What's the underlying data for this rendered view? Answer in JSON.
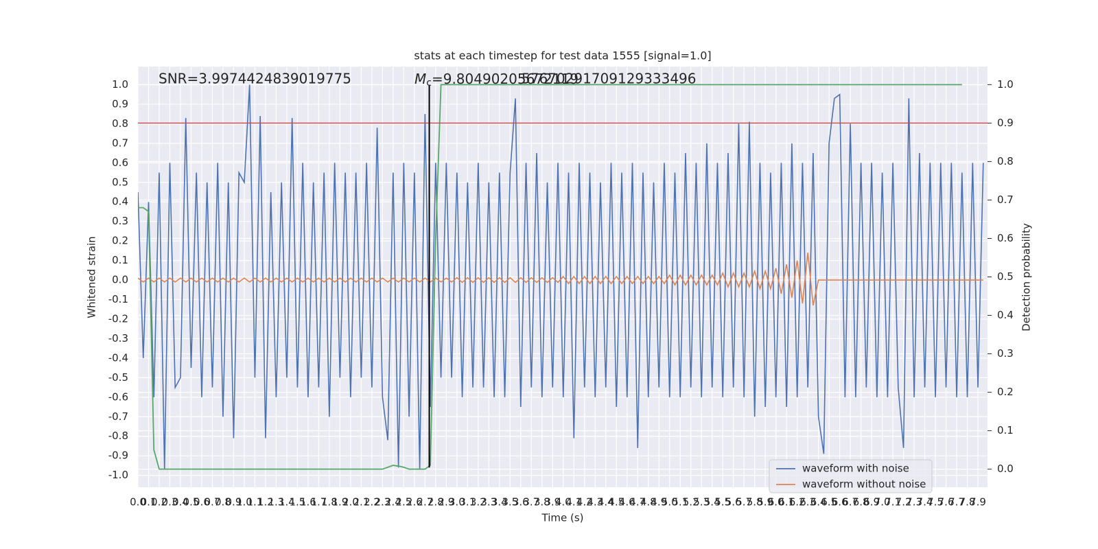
{
  "chart_data": {
    "type": "line",
    "title": "stats at each timestep for test data 1555 [signal=1.0]",
    "xlabel": "Time (s)",
    "ylabel": "Whitened strain",
    "y2label": "Detection probability",
    "annotations": {
      "snr": "SNR=3.9974424839019775",
      "mc_symbol": "M",
      "mc_subscript": "c",
      "mc_text": "=9.80490205672119",
      "mc_overlap": "57670291709129333496"
    },
    "grid": true,
    "legend_loc": "lower right",
    "xlim": [
      0,
      7.99
    ],
    "ylim": [
      -1.061,
      1.093
    ],
    "y2lim": [
      -0.047,
      1.047
    ],
    "xticks": [
      {
        "value": 0,
        "label": "0.0"
      },
      0.1,
      0.2,
      0.3,
      0.4,
      0.5,
      0.6,
      0.7,
      0.8,
      0.9,
      {
        "value": 1,
        "label": "1.0"
      },
      1.1,
      1.2,
      1.3,
      1.4,
      1.5,
      1.6,
      1.7,
      1.8,
      1.9,
      {
        "value": 2,
        "label": "2.0"
      },
      2.1,
      2.2,
      2.3,
      2.4,
      2.5,
      2.6,
      2.7,
      2.8,
      2.9,
      {
        "value": 3,
        "label": "3.0"
      },
      3.1,
      3.2,
      3.3,
      3.4,
      3.5,
      3.6,
      3.7,
      3.8,
      3.9,
      {
        "value": 4,
        "label": "4.0"
      },
      4.1,
      4.2,
      4.3,
      4.4,
      4.5,
      4.6,
      4.7,
      4.8,
      4.9,
      {
        "value": 5,
        "label": "5.0"
      },
      5.1,
      5.2,
      5.3,
      5.4,
      5.5,
      5.6,
      5.7,
      5.8,
      5.9,
      {
        "value": 6,
        "label": "6.0"
      },
      6.1,
      6.2,
      6.3,
      6.4,
      6.5,
      6.6,
      6.7,
      6.8,
      6.9,
      {
        "value": 7,
        "label": "7.0"
      },
      7.1,
      7.2,
      7.3,
      7.4,
      7.5,
      7.6,
      7.7,
      7.8,
      7.9
    ],
    "yticks": [
      {
        "value": -1,
        "label": "-1.0"
      },
      -0.9,
      -0.8,
      -0.7,
      -0.6,
      -0.5,
      -0.4,
      -0.3,
      -0.2,
      -0.1,
      {
        "value": 0,
        "label": "0.0"
      },
      0.1,
      0.2,
      0.3,
      0.4,
      0.5,
      0.6,
      0.7,
      0.8,
      0.9,
      {
        "value": 1,
        "label": "1.0"
      }
    ],
    "y2ticks": [
      {
        "value": 0,
        "label": "0.0"
      },
      0.1,
      0.2,
      0.3,
      0.4,
      0.5,
      0.6,
      0.7,
      0.8,
      0.9,
      {
        "value": 1,
        "label": "1.0"
      }
    ],
    "x": [
      0,
      0.05,
      0.1,
      0.15,
      0.2,
      0.25,
      0.3,
      0.35,
      0.4,
      0.45,
      0.5,
      0.55,
      0.6,
      0.65,
      0.7,
      0.75,
      0.8,
      0.85,
      0.9,
      0.95,
      1,
      1.05,
      1.1,
      1.15,
      1.2,
      1.25,
      1.3,
      1.35,
      1.4,
      1.45,
      1.5,
      1.55,
      1.6,
      1.65,
      1.7,
      1.75,
      1.8,
      1.85,
      1.9,
      1.95,
      2,
      2.05,
      2.1,
      2.15,
      2.2,
      2.25,
      2.3,
      2.35,
      2.4,
      2.45,
      2.5,
      2.55,
      2.6,
      2.65,
      2.7,
      2.75,
      2.8,
      2.85,
      2.9,
      2.95,
      3,
      3.05,
      3.1,
      3.15,
      3.2,
      3.25,
      3.3,
      3.35,
      3.4,
      3.45,
      3.5,
      3.55,
      3.6,
      3.65,
      3.7,
      3.75,
      3.8,
      3.85,
      3.9,
      3.95,
      4,
      4.05,
      4.1,
      4.15,
      4.2,
      4.25,
      4.3,
      4.35,
      4.4,
      4.45,
      4.5,
      4.55,
      4.6,
      4.65,
      4.7,
      4.75,
      4.8,
      4.85,
      4.9,
      4.95,
      5,
      5.05,
      5.1,
      5.15,
      5.2,
      5.25,
      5.3,
      5.35,
      5.4,
      5.45,
      5.5,
      5.55,
      5.6,
      5.65,
      5.7,
      5.75,
      5.8,
      5.85,
      5.9,
      5.95,
      6,
      6.05,
      6.1,
      6.15,
      6.2,
      6.25,
      6.3,
      6.35,
      6.4,
      6.45,
      6.5,
      6.55,
      6.6,
      6.65,
      6.7,
      6.75,
      6.8,
      6.85,
      6.9,
      6.95,
      7,
      7.05,
      7.1,
      7.15,
      7.2,
      7.25,
      7.3,
      7.35,
      7.4,
      7.45,
      7.5,
      7.55,
      7.6,
      7.65,
      7.7,
      7.75,
      7.8,
      7.85,
      7.9,
      7.95
    ],
    "series": [
      {
        "name": "waveform with noise",
        "color": "#4c72b0",
        "values": [
          0.45,
          -0.4,
          0.4,
          -0.6,
          0.55,
          -0.97,
          0.6,
          -0.55,
          -0.5,
          0.83,
          -0.45,
          0.55,
          -0.6,
          0.5,
          -0.55,
          0.6,
          -0.7,
          0.5,
          -0.81,
          0.55,
          0.5,
          1.0,
          -0.5,
          0.84,
          -0.81,
          0.45,
          -0.6,
          0.5,
          -0.5,
          0.83,
          -0.55,
          0.6,
          -0.6,
          0.5,
          -0.55,
          0.55,
          -0.7,
          0.6,
          -0.5,
          0.55,
          -0.6,
          0.55,
          -0.5,
          0.6,
          -0.55,
          0.78,
          -0.6,
          -0.82,
          0.55,
          -0.96,
          0.6,
          -0.7,
          0.55,
          -0.97,
          0.85,
          -0.65,
          0.6,
          -0.5,
          0.6,
          -0.5,
          0.55,
          -0.6,
          0.5,
          -0.55,
          0.6,
          -0.55,
          0.5,
          -0.6,
          0.55,
          -0.6,
          0.55,
          0.93,
          -0.65,
          0.6,
          -0.55,
          0.65,
          -0.6,
          0.5,
          -0.55,
          0.6,
          -0.6,
          0.55,
          -0.81,
          0.6,
          -0.55,
          0.55,
          -0.6,
          0.5,
          -0.55,
          0.6,
          -0.65,
          0.55,
          -0.6,
          0.6,
          -0.86,
          0.55,
          -0.6,
          0.5,
          -0.55,
          0.6,
          -0.6,
          0.55,
          -0.6,
          0.65,
          -0.55,
          0.6,
          -0.6,
          0.7,
          -0.55,
          0.6,
          -0.6,
          0.65,
          -0.55,
          0.8,
          -0.6,
          0.81,
          -0.7,
          0.6,
          -0.65,
          0.55,
          -0.6,
          0.6,
          -0.65,
          0.7,
          -0.6,
          0.6,
          -0.55,
          0.65,
          -0.7,
          -0.89,
          0.7,
          0.93,
          0.95,
          -0.6,
          0.8,
          -0.6,
          0.6,
          -0.55,
          0.6,
          -0.6,
          0.55,
          -0.6,
          0.6,
          -0.55,
          -0.86,
          0.93,
          -0.6,
          0.65,
          -0.55,
          0.6,
          -0.6,
          0.6,
          -0.55,
          0.6,
          -0.6,
          0.55,
          -0.6,
          0.6,
          -0.55,
          0.6
        ]
      },
      {
        "name": "waveform without noise",
        "color": "#dd8452",
        "values": [
          0.01,
          -0.01,
          0.01,
          -0.01,
          0.01,
          -0.01,
          0.01,
          -0.01,
          0.01,
          -0.01,
          0.01,
          -0.01,
          0.01,
          -0.01,
          0.01,
          -0.01,
          0.01,
          -0.01,
          0.01,
          -0.01,
          0.01,
          -0.01,
          0.01,
          -0.01,
          0.01,
          -0.01,
          0.01,
          -0.01,
          0.01,
          -0.01,
          0.01,
          -0.01,
          0.01,
          -0.01,
          0.01,
          -0.01,
          0.01,
          -0.01,
          0.01,
          -0.01,
          0.01,
          -0.01,
          0.01,
          -0.01,
          0.01,
          -0.01,
          0.01,
          -0.01,
          0.01,
          -0.01,
          0.01,
          -0.01,
          0.01,
          -0.01,
          0.01,
          -0.01,
          0.01,
          -0.01,
          0.01,
          -0.01,
          0.012,
          -0.012,
          0.012,
          -0.012,
          0.012,
          -0.012,
          0.012,
          -0.012,
          0.012,
          -0.012,
          0.012,
          -0.012,
          0.012,
          -0.012,
          0.012,
          -0.012,
          0.012,
          -0.012,
          0.012,
          -0.012,
          0.018,
          -0.018,
          0.018,
          -0.018,
          0.018,
          -0.018,
          0.018,
          -0.018,
          0.018,
          -0.018,
          0.018,
          -0.018,
          0.018,
          -0.018,
          0.018,
          -0.018,
          0.018,
          -0.018,
          0.018,
          -0.018,
          0.025,
          -0.025,
          0.025,
          -0.025,
          0.025,
          -0.025,
          0.025,
          -0.025,
          0.025,
          -0.025,
          0.035,
          -0.035,
          0.035,
          -0.035,
          0.035,
          -0.035,
          0.045,
          -0.045,
          0.045,
          -0.045,
          0.06,
          -0.07,
          0.08,
          -0.09,
          0.1,
          -0.12,
          0.14,
          -0.13,
          0,
          0,
          0,
          0,
          0,
          0,
          0,
          0,
          0,
          0,
          0,
          0,
          0,
          0,
          0,
          0,
          0,
          0,
          0,
          0,
          0,
          0,
          0,
          0,
          0,
          0,
          0,
          0,
          0,
          0,
          0,
          0
        ]
      }
    ],
    "probability": {
      "color": "#55a868",
      "axis": "y2",
      "values": [
        0.68,
        0.68,
        0.67,
        0.05,
        0,
        0,
        0,
        0,
        0,
        0,
        0,
        0,
        0,
        0,
        0,
        0,
        0,
        0,
        0,
        0,
        0,
        0,
        0,
        0,
        0,
        0,
        0,
        0,
        0,
        0,
        0,
        0,
        0,
        0,
        0,
        0,
        0,
        0,
        0,
        0,
        0,
        0,
        0,
        0,
        0,
        0,
        0,
        0.005,
        0.01,
        0.008,
        0.005,
        0,
        0,
        0,
        0,
        0.01,
        0.6,
        1,
        1,
        1,
        1,
        1,
        1,
        1,
        1,
        1,
        1,
        1,
        1,
        1,
        1,
        1,
        1,
        1,
        1,
        1,
        1,
        1,
        1,
        1,
        1,
        1,
        1,
        1,
        1,
        1,
        1,
        1,
        1,
        1,
        1,
        1,
        1,
        1,
        1,
        1,
        1,
        1,
        1,
        1,
        1,
        1,
        1,
        1,
        1,
        1,
        1,
        1,
        1,
        1,
        1,
        1,
        1,
        1,
        1,
        1,
        1,
        1,
        1,
        1,
        1,
        1,
        1,
        1,
        1,
        1,
        1,
        1,
        1,
        1,
        1,
        1,
        1,
        1,
        1,
        1,
        1,
        1,
        1,
        1,
        1,
        1,
        1,
        1,
        1,
        1,
        1,
        1,
        1,
        1,
        1,
        1,
        1,
        1,
        1,
        1
      ]
    },
    "threshold": {
      "value": 0.9,
      "axis": "y2",
      "color": "#c44e52"
    },
    "vline": {
      "x": 2.74,
      "y": [
        -0.96,
        1.0
      ],
      "color": "#000000"
    }
  }
}
